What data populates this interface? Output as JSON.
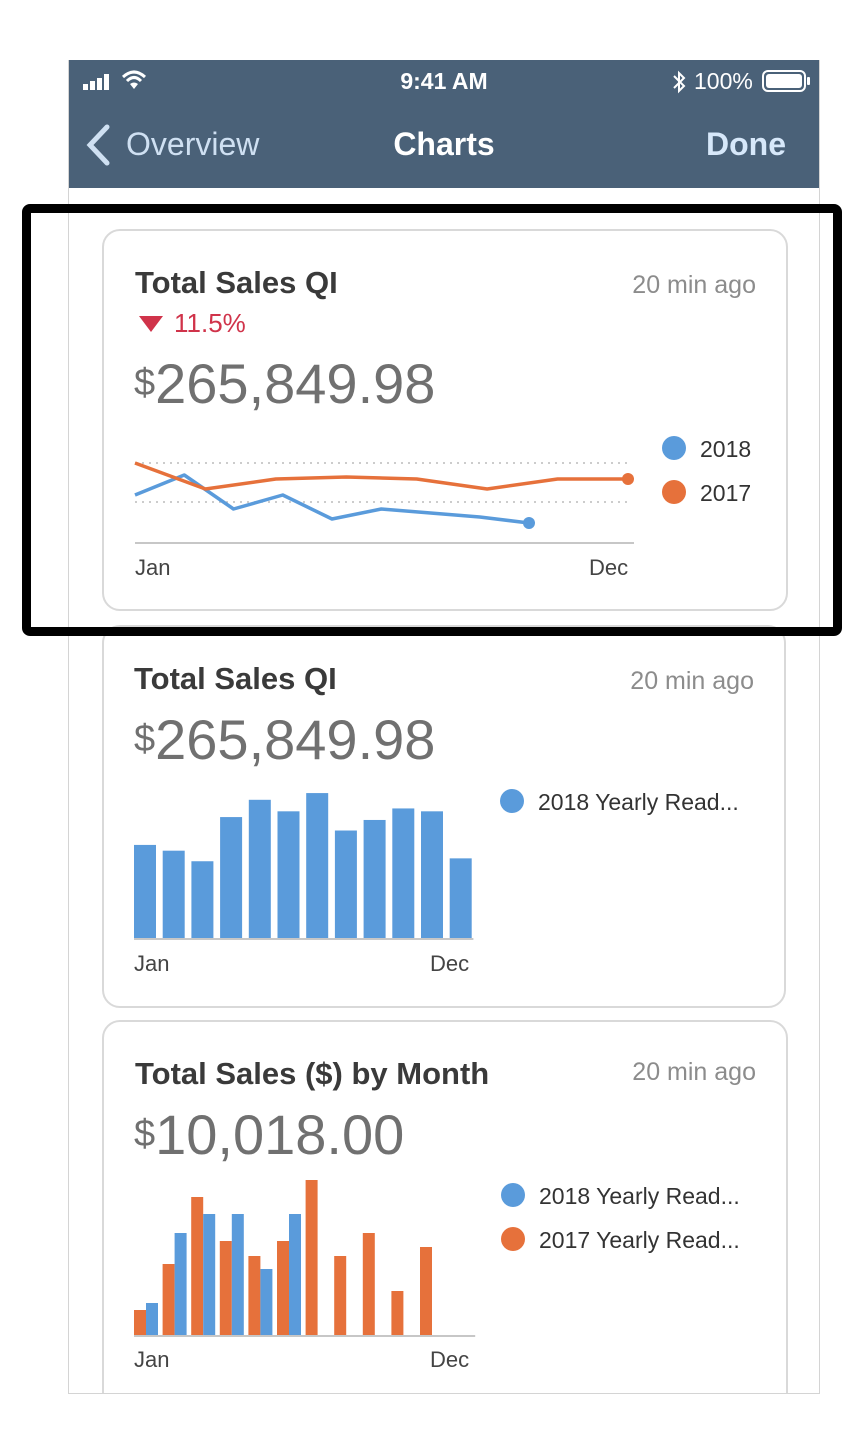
{
  "status": {
    "time": "9:41 AM",
    "battery": "100%"
  },
  "nav": {
    "back": "Overview",
    "title": "Charts",
    "done": "Done"
  },
  "colors": {
    "nav_bg": "#4a6178",
    "blue": "#5a9bdb",
    "orange": "#e6713b",
    "down": "#d0334a"
  },
  "cards": [
    {
      "title": "Total Sales QI",
      "time": "20 min ago",
      "change": "11.5%",
      "currency": "$",
      "amount": "265,849.98",
      "x_start": "Jan",
      "x_end": "Dec",
      "chart_data": {
        "type": "line",
        "series": [
          {
            "name": "2018",
            "values": [
              24,
              34,
              17,
              24,
              12,
              17,
              15,
              13,
              10
            ],
            "color": "#5a9bdb"
          },
          {
            "name": "2017",
            "values": [
              40,
              27,
              32,
              33,
              32,
              27,
              32,
              32
            ],
            "color": "#e6713b"
          }
        ]
      }
    },
    {
      "title": "Total Sales QI",
      "time": "20 min ago",
      "currency": "$",
      "amount": "265,849.98",
      "x_start": "Jan",
      "x_end": "Dec",
      "chart_data": {
        "type": "bar",
        "series": [
          {
            "name": "2018 Yearly Read...",
            "values": [
              98,
              92,
              81,
              127,
              145,
              133,
              152,
              113,
              124,
              136,
              133,
              84
            ],
            "color": "#5a9bdb"
          }
        ]
      }
    },
    {
      "title": "Total Sales ($) by Month",
      "time": "20 min ago",
      "currency": "$",
      "amount": "10,018.00",
      "x_start": "Jan",
      "x_end": "Dec",
      "chart_data": {
        "type": "bar",
        "series": [
          {
            "name": "2018 Yearly Read...",
            "values": [
              33,
              103,
              122,
              122,
              67,
              122
            ],
            "color": "#5a9bdb"
          },
          {
            "name": "2017 Yearly Read...",
            "values": [
              26,
              72,
              139,
              95,
              80,
              95,
              156,
              80,
              103,
              45,
              89
            ],
            "color": "#e6713b"
          }
        ]
      }
    }
  ]
}
